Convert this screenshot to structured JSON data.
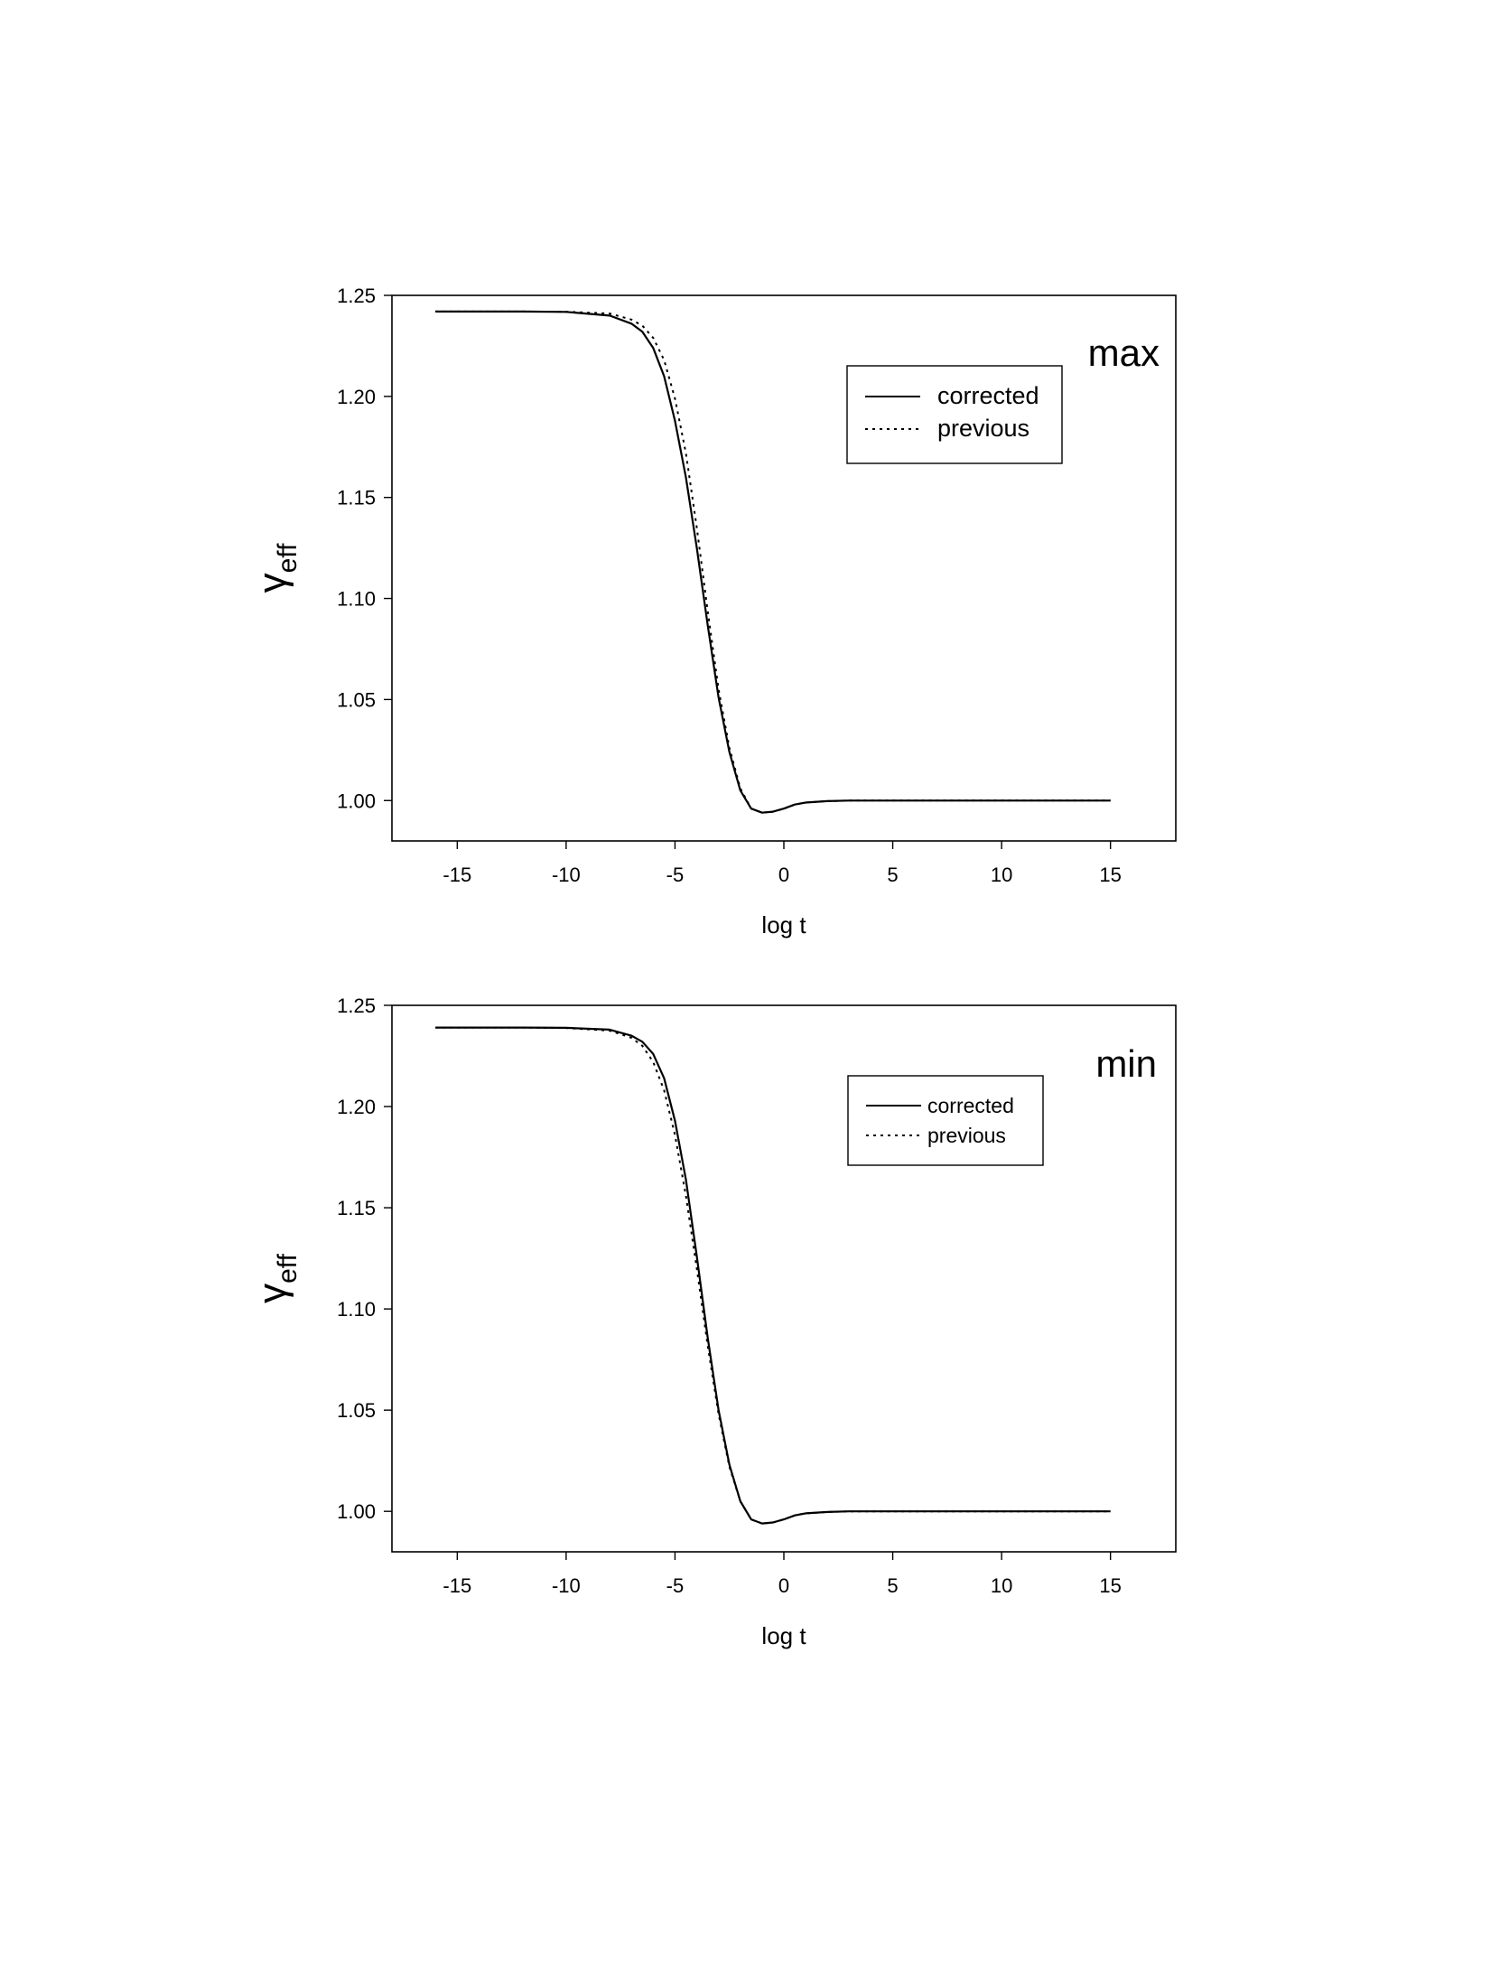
{
  "chart_data": [
    {
      "type": "line",
      "annotation": "max",
      "xlabel": "log t",
      "ylabel": "γ",
      "ylabel_subscript": "eff",
      "xlim": [
        -18,
        18
      ],
      "ylim": [
        0.98,
        1.25
      ],
      "xticks": [
        -15,
        -10,
        -5,
        0,
        5,
        10,
        15
      ],
      "xtick_labels": [
        "-15",
        "-10",
        "-5",
        "0",
        "5",
        "10",
        "15"
      ],
      "yticks": [
        1.0,
        1.05,
        1.1,
        1.15,
        1.2,
        1.25
      ],
      "ytick_labels": [
        "1.00",
        "1.05",
        "1.10",
        "1.15",
        "1.20",
        "1.25"
      ],
      "grid": false,
      "legend_position": "top-right",
      "series": [
        {
          "name": "corrected",
          "style": "solid",
          "x": [
            -16,
            -12,
            -10,
            -8,
            -7,
            -6.5,
            -6,
            -5.5,
            -5,
            -4.5,
            -4,
            -3.5,
            -3,
            -2.5,
            -2,
            -1.5,
            -1,
            -0.5,
            0,
            0.5,
            1,
            2,
            3,
            5,
            10,
            15
          ],
          "y": [
            1.242,
            1.242,
            1.2418,
            1.24,
            1.236,
            1.232,
            1.224,
            1.21,
            1.188,
            1.16,
            1.125,
            1.087,
            1.051,
            1.024,
            1.005,
            0.996,
            0.994,
            0.9945,
            0.996,
            0.998,
            0.999,
            0.9997,
            1.0,
            1.0,
            1.0,
            1.0
          ]
        },
        {
          "name": "previous",
          "style": "dotted",
          "x": [
            -16,
            -12,
            -10,
            -8,
            -7,
            -6.5,
            -6,
            -5.5,
            -5,
            -4.5,
            -4,
            -3.5,
            -3,
            -2.5,
            -2,
            -1.5,
            -1,
            -0.5,
            0,
            0.5,
            1,
            2,
            3,
            5,
            10,
            15
          ],
          "y": [
            1.242,
            1.242,
            1.2419,
            1.241,
            1.238,
            1.235,
            1.229,
            1.218,
            1.199,
            1.172,
            1.135,
            1.094,
            1.055,
            1.026,
            1.006,
            0.996,
            0.994,
            0.9945,
            0.996,
            0.998,
            0.999,
            0.9997,
            1.0,
            1.0,
            1.0,
            1.0
          ]
        }
      ]
    },
    {
      "type": "line",
      "annotation": "min",
      "xlabel": "log t",
      "ylabel": "γ",
      "ylabel_subscript": "eff",
      "xlim": [
        -18,
        18
      ],
      "ylim": [
        0.98,
        1.25
      ],
      "xticks": [
        -15,
        -10,
        -5,
        0,
        5,
        10,
        15
      ],
      "xtick_labels": [
        "-15",
        "-10",
        "-5",
        "0",
        "5",
        "10",
        "15"
      ],
      "yticks": [
        1.0,
        1.05,
        1.1,
        1.15,
        1.2,
        1.25
      ],
      "ytick_labels": [
        "1.00",
        "1.05",
        "1.10",
        "1.15",
        "1.20",
        "1.25"
      ],
      "grid": false,
      "legend_position": "top-right",
      "series": [
        {
          "name": "corrected",
          "style": "solid",
          "x": [
            -16,
            -12,
            -10,
            -8,
            -7,
            -6.5,
            -6,
            -5.5,
            -5,
            -4.5,
            -4,
            -3.5,
            -3,
            -2.5,
            -2,
            -1.5,
            -1,
            -0.5,
            0,
            0.5,
            1,
            2,
            3,
            5,
            10,
            15
          ],
          "y": [
            1.239,
            1.239,
            1.2389,
            1.238,
            1.235,
            1.232,
            1.226,
            1.214,
            1.193,
            1.164,
            1.126,
            1.086,
            1.05,
            1.023,
            1.005,
            0.996,
            0.994,
            0.9945,
            0.996,
            0.998,
            0.999,
            0.9997,
            1.0,
            1.0,
            1.0,
            1.0
          ]
        },
        {
          "name": "previous",
          "style": "dotted",
          "x": [
            -16,
            -12,
            -10,
            -8,
            -7,
            -6.5,
            -6,
            -5.5,
            -5,
            -4.5,
            -4,
            -3.5,
            -3,
            -2.5,
            -2,
            -1.5,
            -1,
            -0.5,
            0,
            0.5,
            1,
            2,
            3,
            5,
            10,
            15
          ],
          "y": [
            1.239,
            1.239,
            1.2388,
            1.2375,
            1.234,
            1.23,
            1.222,
            1.208,
            1.186,
            1.156,
            1.12,
            1.082,
            1.048,
            1.022,
            1.005,
            0.996,
            0.994,
            0.9945,
            0.996,
            0.998,
            0.999,
            0.9997,
            1.0,
            1.0,
            1.0,
            1.0
          ]
        }
      ]
    }
  ]
}
